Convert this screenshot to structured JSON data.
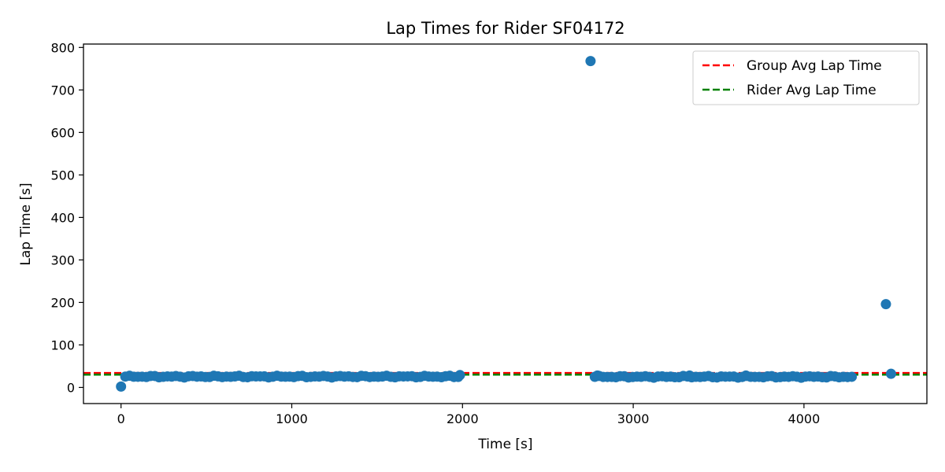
{
  "chart_data": {
    "type": "scatter",
    "title": "Lap Times for Rider SF04172",
    "xlabel": "Time [s]",
    "ylabel": "Lap Time [s]",
    "xlim": [
      -220,
      4720
    ],
    "ylim": [
      -38,
      808
    ],
    "xticks": [
      0,
      1000,
      2000,
      3000,
      4000
    ],
    "yticks": [
      0,
      100,
      200,
      300,
      400,
      500,
      600,
      700,
      800
    ],
    "grid": false,
    "legend_position": "top-right",
    "point_color": "#1f77b4",
    "reference_lines": [
      {
        "name": "Group Avg Lap Time",
        "y": 34,
        "color": "#ff0000",
        "style": "dashed"
      },
      {
        "name": "Rider Avg Lap Time",
        "y": 30,
        "color": "#008000",
        "style": "dashed"
      }
    ],
    "segments": [
      {
        "x_start": 25,
        "x_end": 1975,
        "count": 80,
        "y_base": 25.5,
        "y_jitter": 2.2
      },
      {
        "x_start": 2775,
        "x_end": 4280,
        "count": 62,
        "y_base": 25,
        "y_jitter": 2.2
      }
    ],
    "points": [
      {
        "x": 0,
        "y": 2
      },
      {
        "x": 1985,
        "y": 29
      },
      {
        "x": 2750,
        "y": 768
      },
      {
        "x": 2790,
        "y": 28
      },
      {
        "x": 3330,
        "y": 28
      },
      {
        "x": 3660,
        "y": 28
      },
      {
        "x": 4480,
        "y": 196
      },
      {
        "x": 4510,
        "y": 32
      }
    ]
  }
}
